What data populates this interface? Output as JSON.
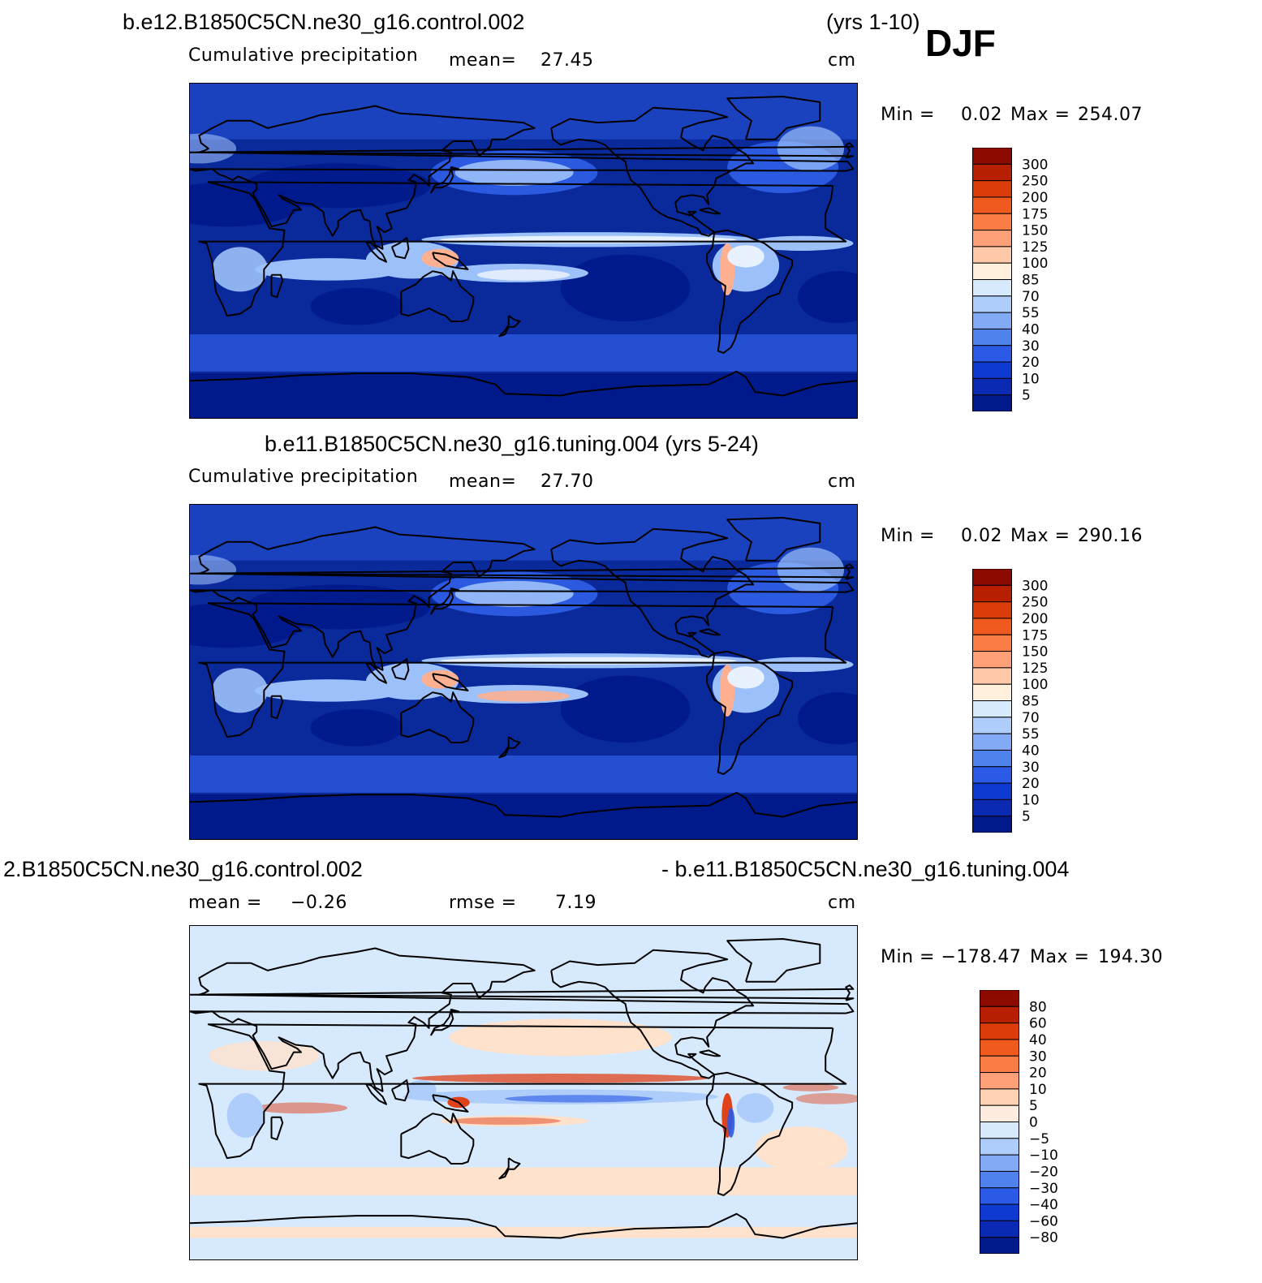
{
  "season": "DJF",
  "panels": [
    {
      "title": "b.e12.B1850C5CN.ne30_g16.control.002",
      "title_right": "(yrs 1-10)",
      "variable": "Cumulative precipitation",
      "stat1_label": "mean=",
      "stat1_value": "27.45",
      "stat2_label": "",
      "stat2_value": "",
      "units": "cm",
      "min_label": "Min =",
      "min_value": "0.02",
      "max_label": "Max =",
      "max_value": "254.07",
      "scale": "precip"
    },
    {
      "title": "b.e11.B1850C5CN.ne30_g16.tuning.004 (yrs 5-24)",
      "title_right": "",
      "variable": "Cumulative precipitation",
      "stat1_label": "mean=",
      "stat1_value": "27.70",
      "stat2_label": "",
      "stat2_value": "",
      "units": "cm",
      "min_label": "Min =",
      "min_value": "0.02",
      "max_label": "Max =",
      "max_value": "290.16",
      "scale": "precip"
    },
    {
      "title": "2.B1850C5CN.ne30_g16.control.002",
      "title_right": "- b.e11.B1850C5CN.ne30_g16.tuning.004",
      "variable": "",
      "stat1_label": "mean =",
      "stat1_value": "−0.26",
      "stat2_label": "rmse =",
      "stat2_value": "7.19",
      "units": "cm",
      "min_label": "Min = −178.47",
      "min_value": "",
      "max_label": "Max =",
      "max_value": "194.30",
      "scale": "diff"
    }
  ],
  "colorbars": {
    "precip": {
      "labels": [
        "300",
        "250",
        "200",
        "175",
        "150",
        "125",
        "100",
        "85",
        "70",
        "55",
        "40",
        "30",
        "20",
        "10",
        "5"
      ],
      "colors": [
        "#8c0a00",
        "#b81e00",
        "#dc3c0a",
        "#f05a1e",
        "#fa7d46",
        "#ffa078",
        "#ffc8a8",
        "#fff0dc",
        "#d7e9fc",
        "#aecdfa",
        "#82aaf5",
        "#5082ee",
        "#2a5ae6",
        "#0f3ad2",
        "#0a2ab4",
        "#001a8c"
      ]
    },
    "diff": {
      "labels": [
        "80",
        "60",
        "40",
        "30",
        "20",
        "10",
        "5",
        "0",
        "−5",
        "−10",
        "−20",
        "−30",
        "−40",
        "−60",
        "−80"
      ],
      "colors": [
        "#8c0a00",
        "#b81e00",
        "#dc3c0a",
        "#f05a1e",
        "#fa7d46",
        "#ffa078",
        "#ffd2b4",
        "#ffece0",
        "#d7e9fc",
        "#aecdfa",
        "#82aaf5",
        "#5082ee",
        "#2a5ae6",
        "#0f3ad2",
        "#0a2ab4",
        "#001a8c"
      ]
    }
  },
  "map_colors": {
    "precip_base": "#0a2a9c",
    "precip_dry": "#001a8c",
    "precip_mid": "#2f5fe8",
    "precip_wet": "#9cc0fa",
    "precip_vwet": "#e8f1fe",
    "precip_peak": "#ffb090",
    "diff_base": "#d7e9fc",
    "diff_pos": "#ffe2cc",
    "diff_neg": "#aecdfa",
    "diff_strong_pos": "#e0421a",
    "diff_strong_neg": "#2a5ae6"
  }
}
